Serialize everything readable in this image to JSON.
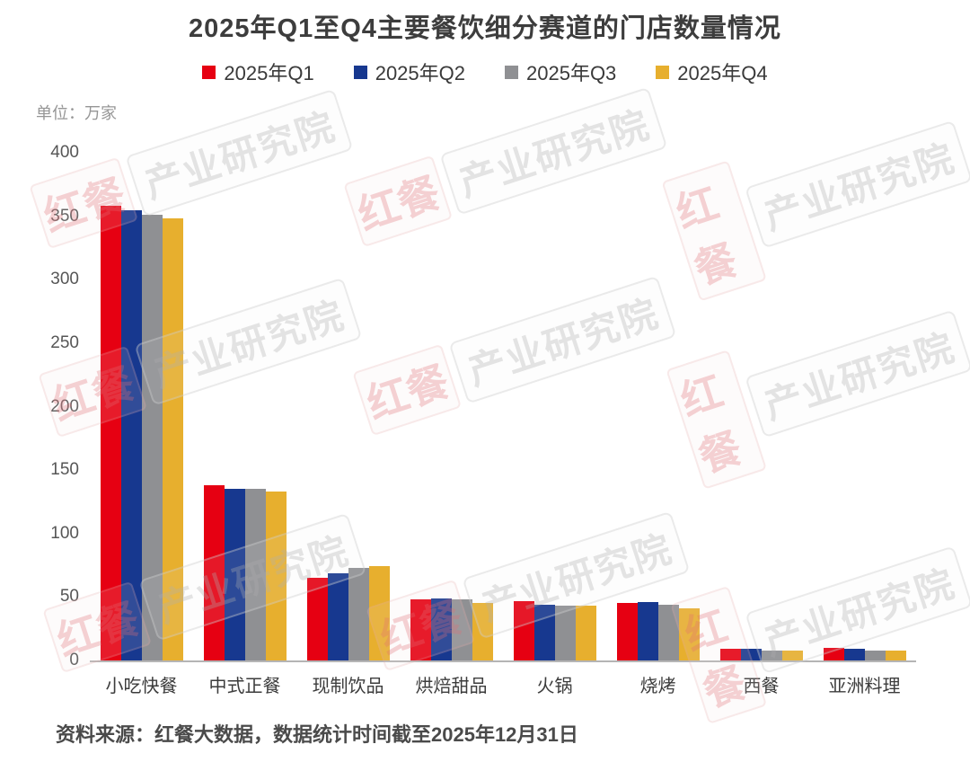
{
  "title": "2025年Q1至Q4主要餐饮细分赛道的门店数量情况",
  "unit_label": "单位：万家",
  "source_note": "资料来源：红餐大数据，数据统计时间截至2025年12月31日",
  "watermark": {
    "logo": "红餐",
    "text": "产业研究院"
  },
  "chart_data": {
    "type": "bar",
    "title": "2025年Q1至Q4主要餐饮细分赛道的门店数量情况",
    "unit": "万家",
    "categories": [
      "小吃快餐",
      "中式正餐",
      "现制饮品",
      "烘焙甜品",
      "火锅",
      "烧烤",
      "西餐",
      "亚洲料理"
    ],
    "series": [
      {
        "name": "2025年Q1",
        "color": "#E60012",
        "values": [
          358,
          138,
          65,
          48,
          47,
          45,
          9,
          10
        ]
      },
      {
        "name": "2025年Q2",
        "color": "#17388F",
        "values": [
          355,
          135,
          69,
          49,
          44,
          46,
          9,
          9
        ]
      },
      {
        "name": "2025年Q3",
        "color": "#8F9093",
        "values": [
          351,
          135,
          73,
          48,
          43,
          44,
          8,
          8
        ]
      },
      {
        "name": "2025年Q4",
        "color": "#E7AF2E",
        "values": [
          348,
          133,
          74,
          45,
          43,
          41,
          8,
          8
        ]
      }
    ],
    "ylabel": "单位：万家",
    "ylim": [
      0,
      400
    ],
    "yticks": [
      0,
      50,
      100,
      150,
      200,
      250,
      300,
      350,
      400
    ],
    "grid": false,
    "legend_position": "top"
  }
}
